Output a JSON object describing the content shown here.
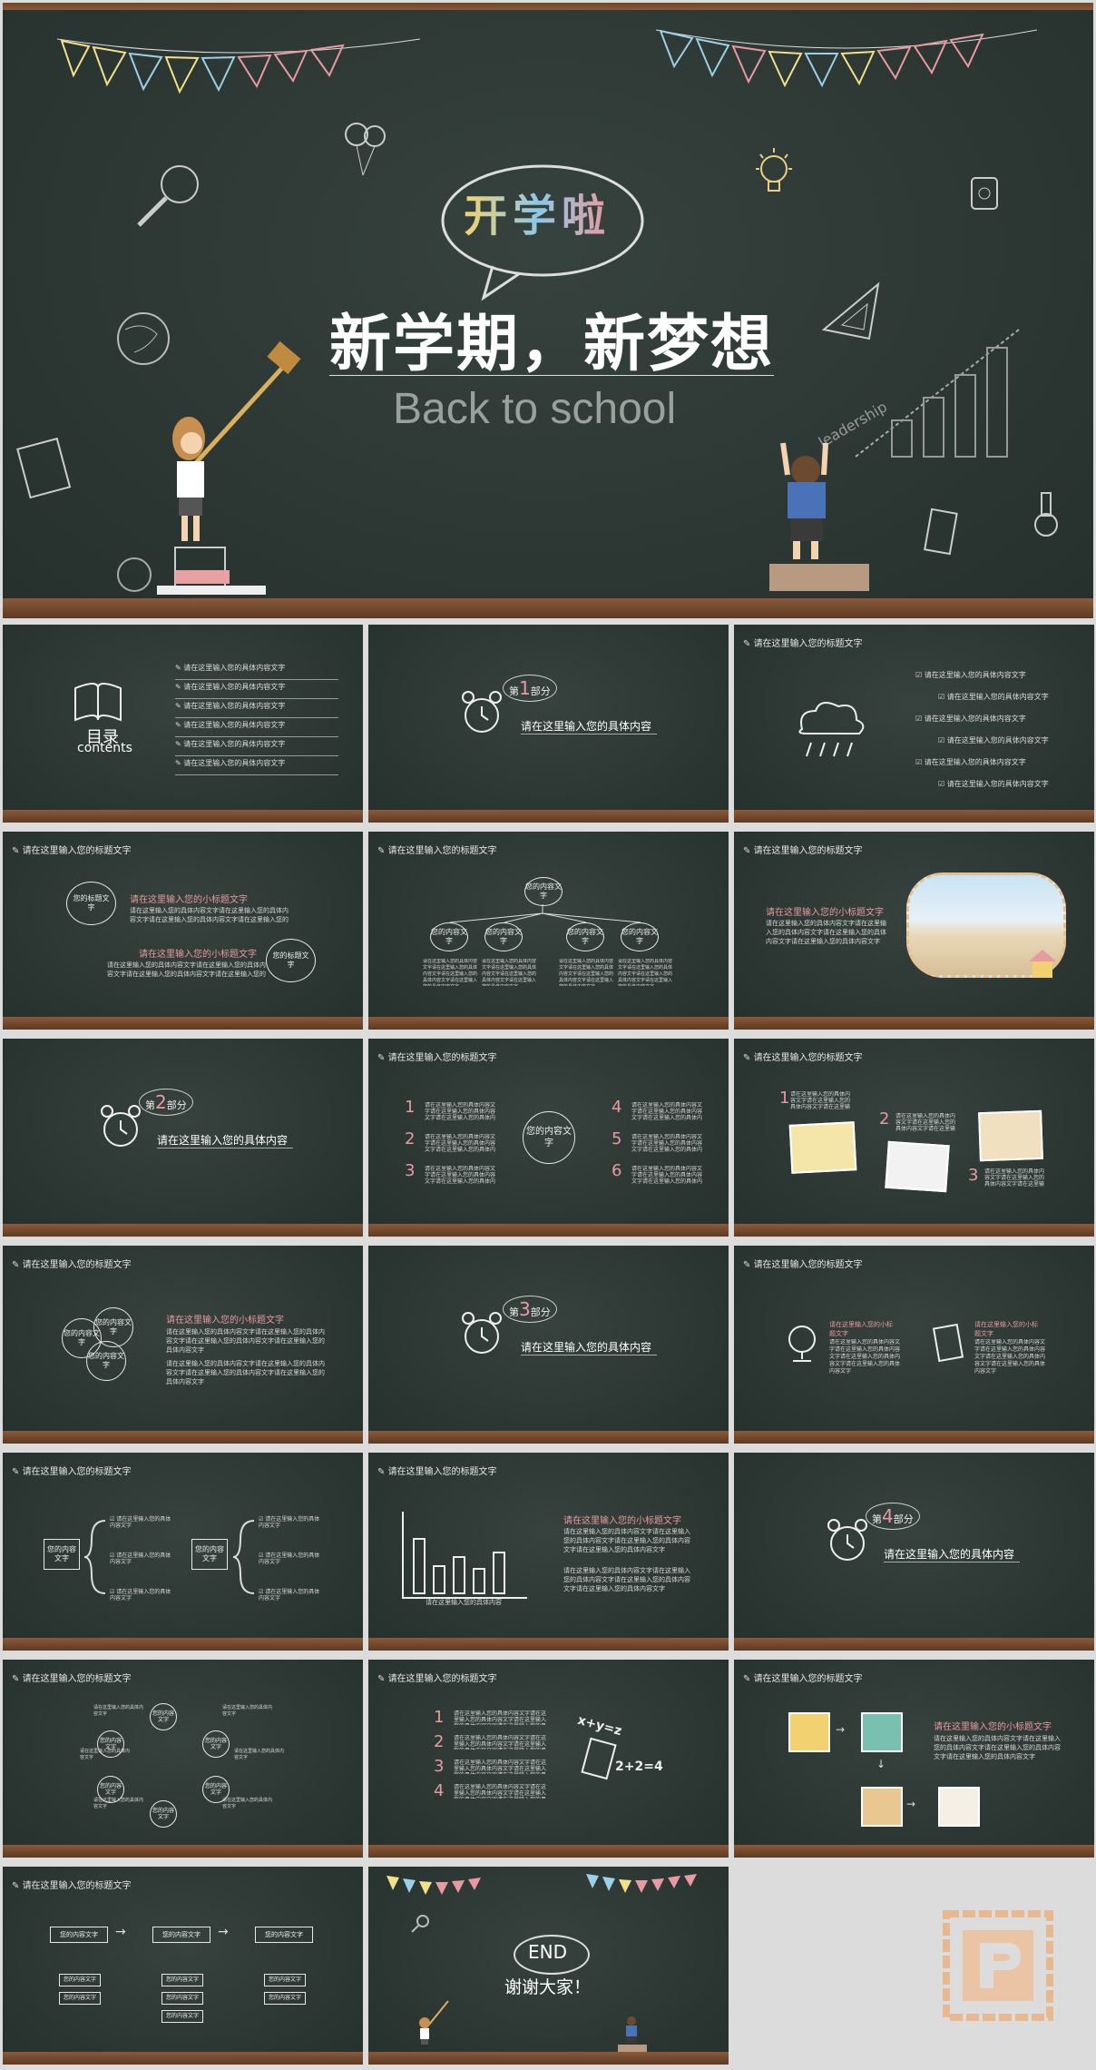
{
  "cover": {
    "badge": "开学啦",
    "title": "新学期，新梦想",
    "subtitle": "Back to school",
    "doodle_text": "leadership"
  },
  "common": {
    "header": "请在这里输入您的标题文字",
    "content": "请在这里输入您的具体内容",
    "subtitle": "请在这里输入您的小标题文字",
    "item": "请在这里输入您的具体内容文字",
    "circle": "您的内容文字",
    "circle_title": "您的标题文字",
    "para": "请在这里输入您的具体内容文字请在这里输入您的具体内容文字请在这里输入您的具体内容文字请在这里输入您的具体内容文字"
  },
  "toc": {
    "title": "目录",
    "title_en": "contents",
    "items": [
      "请在这里输入您的具体内容文字",
      "请在这里输入您的具体内容文字",
      "请在这里输入您的具体内容文字",
      "请在这里输入您的具体内容文字",
      "请在这里输入您的具体内容文字",
      "请在这里输入您的具体内容文字"
    ]
  },
  "parts": [
    {
      "pre": "第",
      "num": "1",
      "post": "部分",
      "text": "请在这里输入您的具体内容"
    },
    {
      "pre": "第",
      "num": "2",
      "post": "部分",
      "text": "请在这里输入您的具体内容"
    },
    {
      "pre": "第",
      "num": "3",
      "post": "部分",
      "text": "请在这里输入您的具体内容"
    },
    {
      "pre": "第",
      "num": "4",
      "post": "部分",
      "text": "请在这里输入您的具体内容"
    }
  ],
  "numbers": [
    "1",
    "2",
    "3",
    "4",
    "5",
    "6"
  ],
  "math": {
    "eq1": "x+y=z",
    "eq2": "2+2=4"
  },
  "chart_caption": "请在这里输入您的具体内容",
  "end": {
    "label": "END",
    "thanks": "谢谢大家！"
  },
  "colors": {
    "board": "#2c3834",
    "accent": "#e89aa0",
    "chalk": "#f0f0f0",
    "wood": "#7a4e30"
  }
}
